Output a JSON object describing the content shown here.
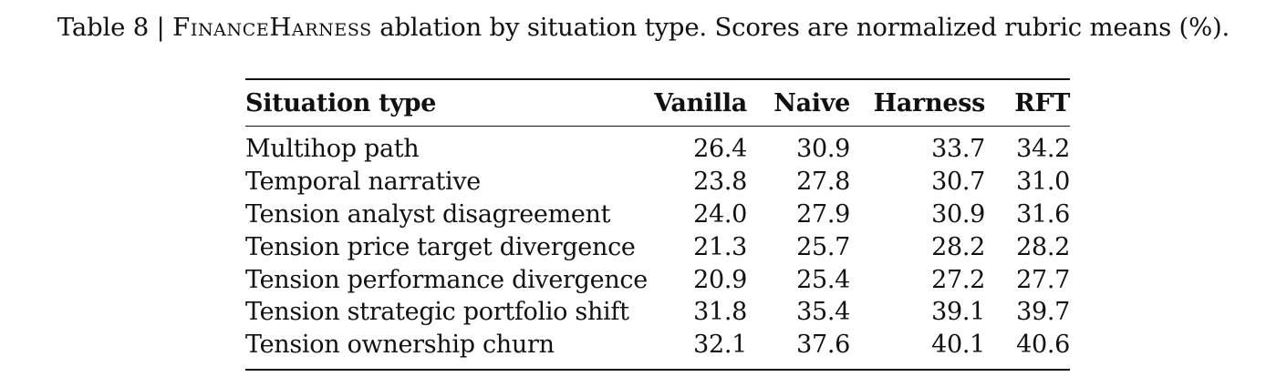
{
  "caption": {
    "prefix": "Table 8 | ",
    "name": "FinanceHarness",
    "suffix": " ablation by situation type. Scores are normalized rubric means (%)."
  },
  "table": {
    "headers": [
      "Situation type",
      "Vanilla",
      "Naive",
      "Harness",
      "RFT"
    ],
    "rows": [
      [
        "Multihop path",
        "26.4",
        "30.9",
        "33.7",
        "34.2"
      ],
      [
        "Temporal narrative",
        "23.8",
        "27.8",
        "30.7",
        "31.0"
      ],
      [
        "Tension analyst disagreement",
        "24.0",
        "27.9",
        "30.9",
        "31.6"
      ],
      [
        "Tension price target divergence",
        "21.3",
        "25.7",
        "28.2",
        "28.2"
      ],
      [
        "Tension performance divergence",
        "20.9",
        "25.4",
        "27.2",
        "27.7"
      ],
      [
        "Tension strategic portfolio shift",
        "31.8",
        "35.4",
        "39.1",
        "39.7"
      ],
      [
        "Tension ownership churn",
        "32.1",
        "37.6",
        "40.1",
        "40.6"
      ]
    ]
  }
}
